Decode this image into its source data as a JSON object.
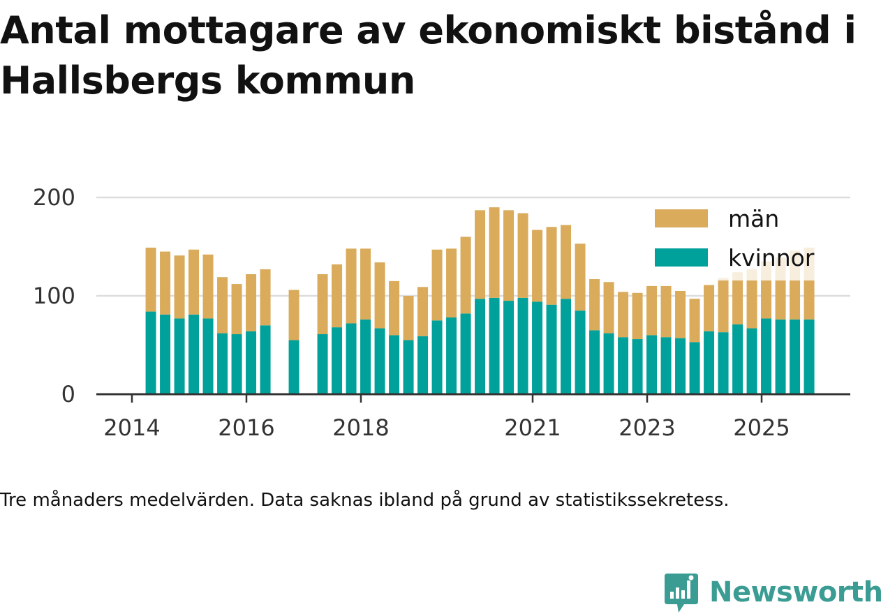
{
  "title": "Antal mottagare av ekonomiskt bistånd i Hallsbergs kommun",
  "footnote": "Tre månaders medelvärden. Data saknas ibland på grund av statistikssekretess.",
  "brand": {
    "name": "Newsworthy",
    "color": "#3a9c93"
  },
  "chart_data": {
    "type": "bar",
    "stacked": true,
    "title": "Antal mottagare av ekonomiskt bistånd i Hallsbergs kommun",
    "xlabel": "",
    "ylabel": "",
    "ylim": [
      0,
      200
    ],
    "yticks": [
      0,
      100,
      200
    ],
    "grid": true,
    "legend_position": "top-right",
    "x_tick_labels": [
      {
        "label": "2014",
        "year": 2014.0
      },
      {
        "label": "2016",
        "year": 2016.0
      },
      {
        "label": "2018",
        "year": 2018.0
      },
      {
        "label": "2021",
        "year": 2021.0
      },
      {
        "label": "2023",
        "year": 2023.0
      },
      {
        "label": "2025",
        "year": 2025.0
      }
    ],
    "periods": [
      2014.33,
      2014.58,
      2014.83,
      2015.08,
      2015.33,
      2015.58,
      2015.83,
      2016.08,
      2016.33,
      2016.83,
      2017.33,
      2017.58,
      2017.83,
      2018.08,
      2018.33,
      2018.58,
      2018.83,
      2019.08,
      2019.33,
      2019.58,
      2019.83,
      2020.08,
      2020.33,
      2020.58,
      2020.83,
      2021.08,
      2021.33,
      2021.58,
      2021.83,
      2022.08,
      2022.33,
      2022.58,
      2022.83,
      2023.08,
      2023.33,
      2023.58,
      2023.83,
      2024.08,
      2024.33,
      2024.58,
      2024.83,
      2025.08,
      2025.33,
      2025.58,
      2025.83
    ],
    "series": [
      {
        "name": "kvinnor",
        "color": "#00a19a",
        "values": [
          84,
          81,
          77,
          81,
          77,
          62,
          61,
          64,
          70,
          55,
          61,
          68,
          72,
          76,
          67,
          60,
          55,
          59,
          75,
          78,
          82,
          97,
          98,
          95,
          98,
          94,
          91,
          97,
          85,
          65,
          62,
          58,
          56,
          60,
          58,
          57,
          53,
          64,
          63,
          71,
          67,
          77,
          76,
          76,
          76
        ]
      },
      {
        "name": "män",
        "color": "#d9ab5b",
        "values": [
          65,
          64,
          64,
          66,
          65,
          57,
          51,
          58,
          57,
          51,
          61,
          64,
          76,
          72,
          67,
          55,
          45,
          50,
          72,
          70,
          78,
          90,
          92,
          92,
          86,
          73,
          79,
          75,
          68,
          52,
          52,
          46,
          47,
          50,
          52,
          48,
          44,
          47,
          55,
          53,
          60,
          58,
          63,
          70,
          73
        ]
      }
    ]
  }
}
